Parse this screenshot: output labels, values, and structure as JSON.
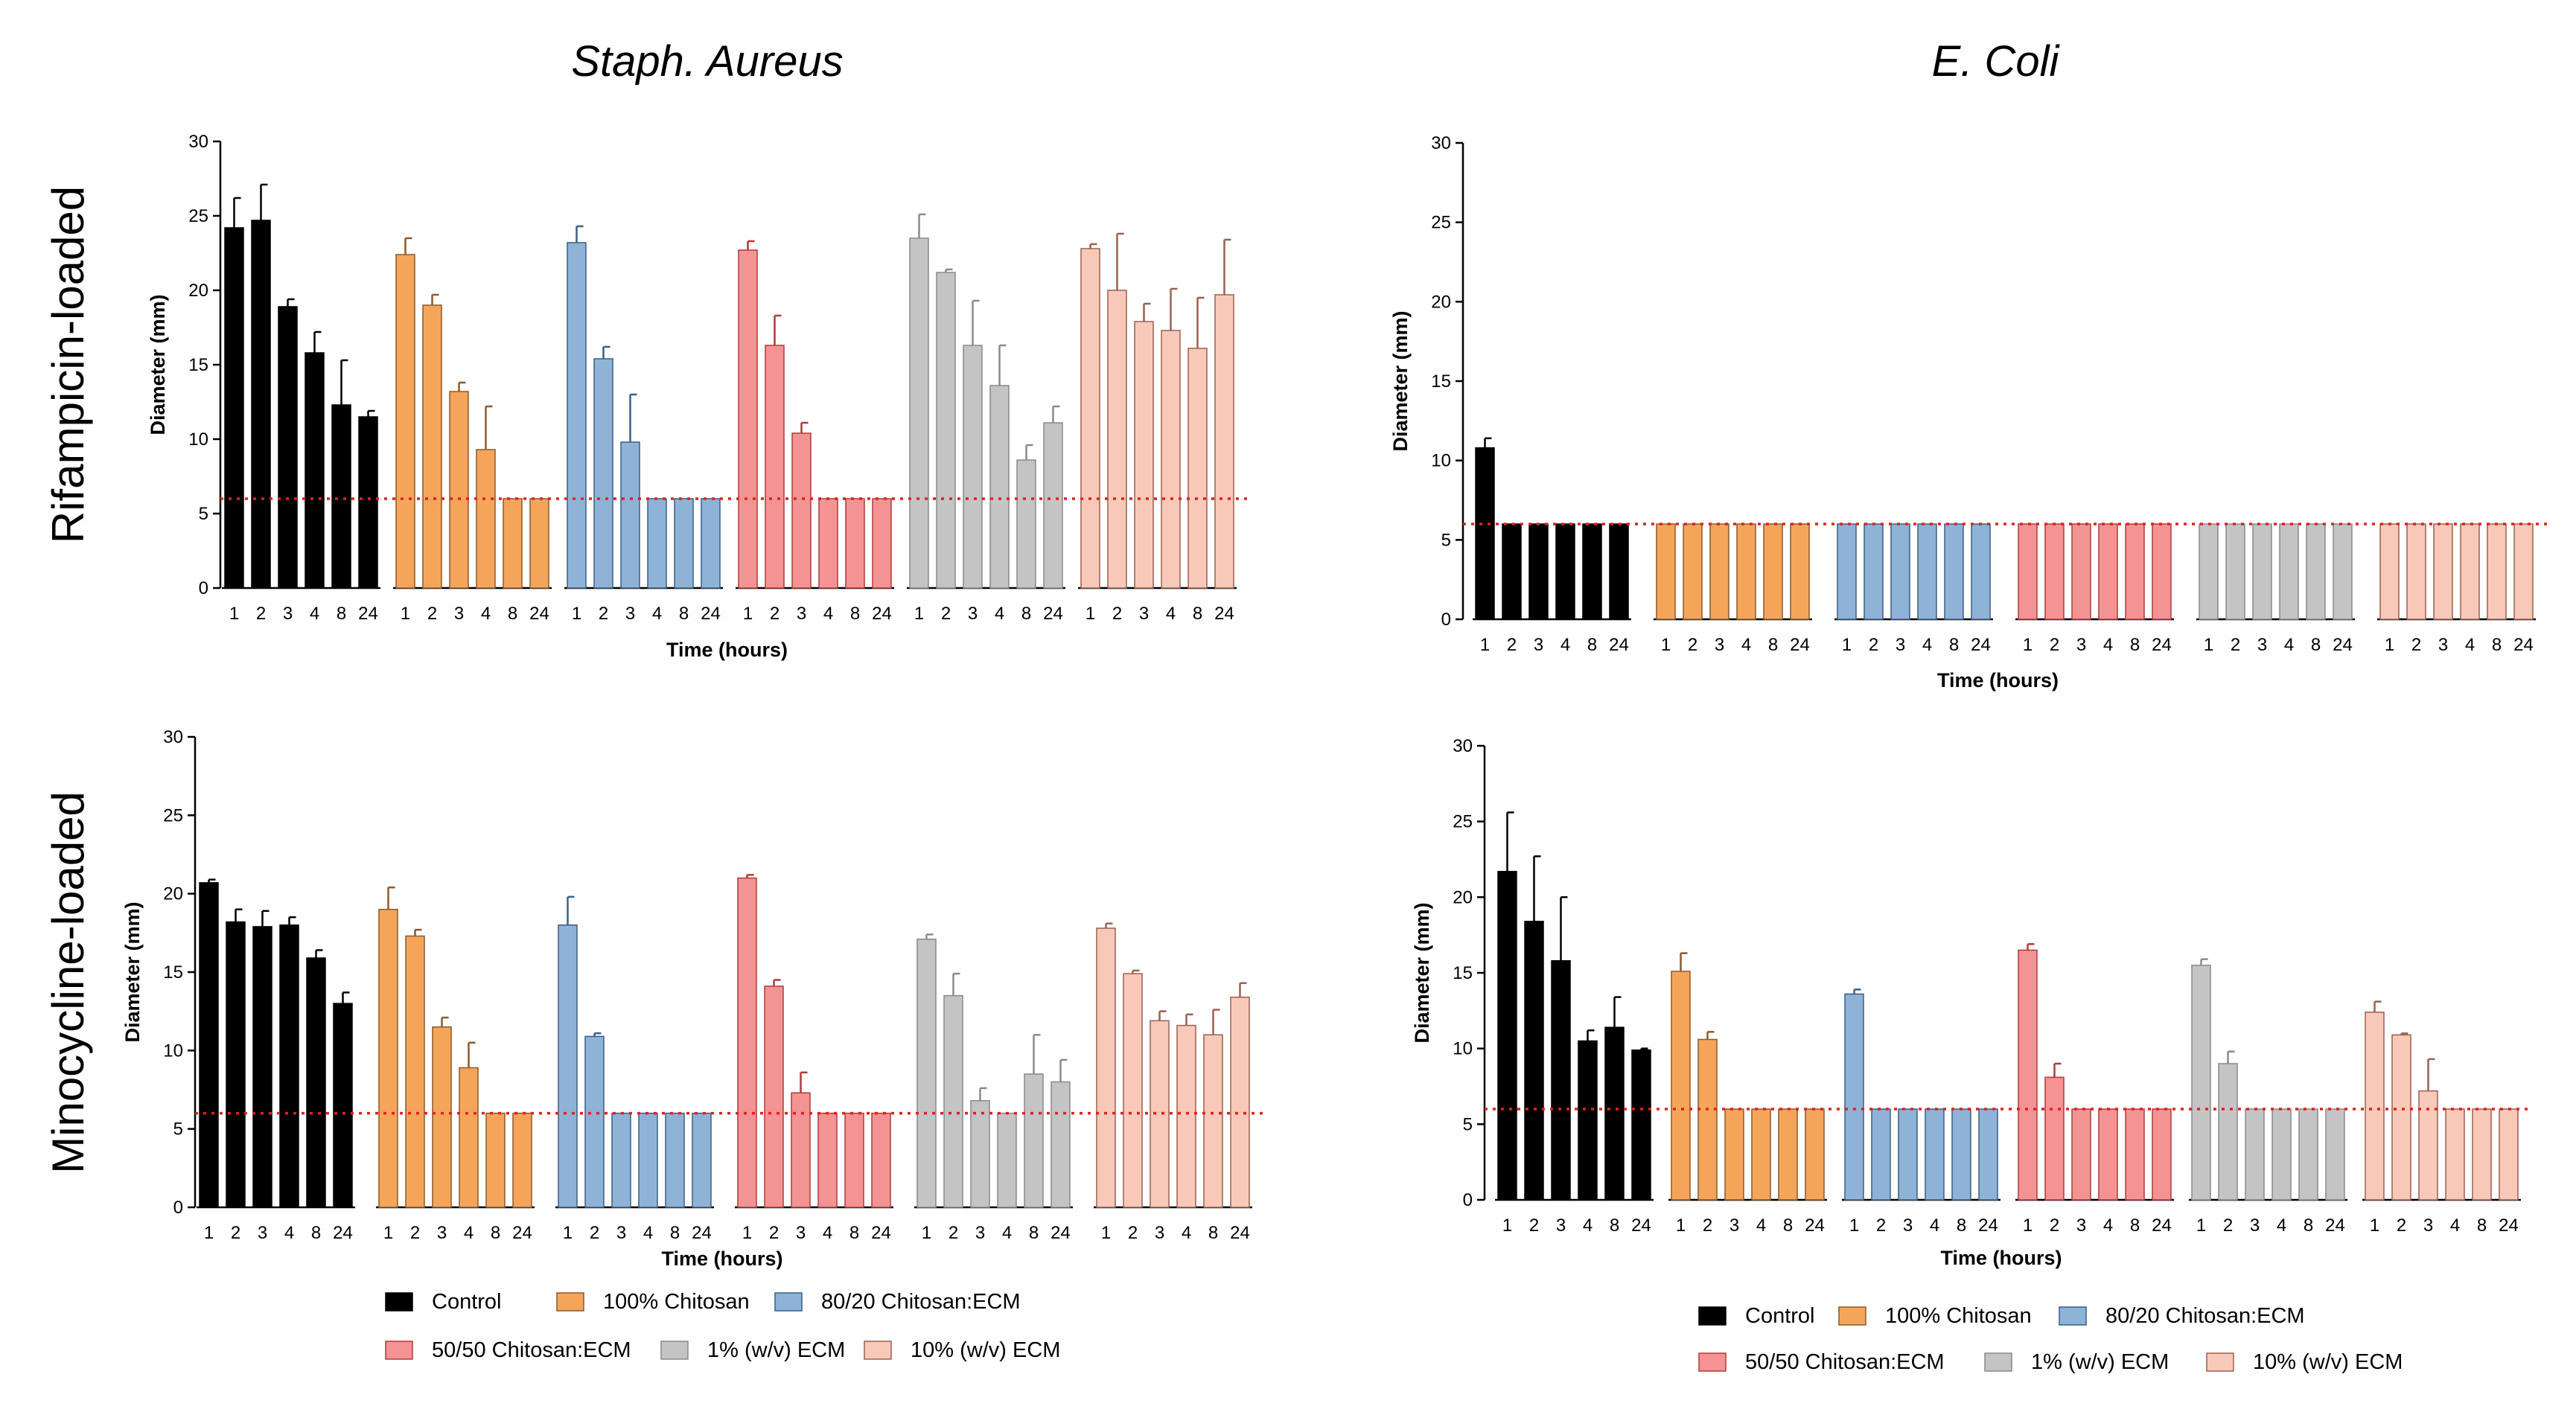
{
  "figure": {
    "column_titles": [
      "Staph. Aureus",
      "E. Coli"
    ],
    "row_titles": [
      "Rifampicin-loaded",
      "Minocycline-loaded"
    ]
  },
  "legend": {
    "items": [
      {
        "label": "Control",
        "color": "#000000"
      },
      {
        "label": "100% Chitosan",
        "color": "#F5A55A"
      },
      {
        "label": "80/20 Chitosan:ECM",
        "color": "#8FB3D6"
      },
      {
        "label": "50/50 Chitosan:ECM",
        "color": "#F49393"
      },
      {
        "label": "1% (w/v) ECM",
        "color": "#C4C4C4"
      },
      {
        "label": "10% (w/v) ECM",
        "color": "#F8C9B8"
      }
    ]
  },
  "chart_data": [
    {
      "type": "bar",
      "title": "Staph. Aureus",
      "row": "Rifampicin-loaded",
      "xlabel": "Time (hours)",
      "ylabel": "Diameter (mm)",
      "ylim": [
        0,
        30
      ],
      "yticks": [
        0,
        5,
        10,
        15,
        20,
        25,
        30
      ],
      "categories": [
        "1",
        "2",
        "3",
        "4",
        "8",
        "24"
      ],
      "reference_line": 6,
      "series": [
        {
          "name": "Control",
          "values": [
            24.2,
            24.7,
            18.9,
            15.8,
            12.3,
            11.5
          ],
          "errors": [
            2.0,
            2.4,
            0.5,
            1.4,
            3.0,
            0.4
          ]
        },
        {
          "name": "100% Chitosan",
          "values": [
            22.4,
            19.0,
            13.2,
            9.3,
            6,
            6
          ],
          "errors": [
            1.1,
            0.7,
            0.6,
            2.9,
            0,
            0
          ]
        },
        {
          "name": "80/20 Chitosan:ECM",
          "values": [
            23.2,
            15.4,
            9.8,
            6,
            6,
            6
          ],
          "errors": [
            1.1,
            0.8,
            3.2,
            0,
            0,
            0
          ]
        },
        {
          "name": "50/50 Chitosan:ECM",
          "values": [
            22.7,
            16.3,
            10.4,
            6,
            6,
            6
          ],
          "errors": [
            0.6,
            2.0,
            0.7,
            0,
            0,
            0
          ]
        },
        {
          "name": "1% (w/v) ECM",
          "values": [
            23.5,
            21.2,
            16.3,
            13.6,
            8.6,
            11.1
          ],
          "errors": [
            1.6,
            0.2,
            3.0,
            2.7,
            1.0,
            1.1
          ]
        },
        {
          "name": "10% (w/v) ECM",
          "values": [
            22.8,
            20.0,
            17.9,
            17.3,
            16.1,
            19.7
          ],
          "errors": [
            0.3,
            3.8,
            1.2,
            2.8,
            3.4,
            3.7
          ]
        }
      ]
    },
    {
      "type": "bar",
      "title": "E. Coli",
      "row": "Rifampicin-loaded",
      "xlabel": "Time (hours)",
      "ylabel": "Diameter (mm)",
      "ylim": [
        0,
        30
      ],
      "yticks": [
        0,
        5,
        10,
        15,
        20,
        25,
        30
      ],
      "categories": [
        "1",
        "2",
        "3",
        "4",
        "8",
        "24"
      ],
      "reference_line": 6,
      "series": [
        {
          "name": "Control",
          "values": [
            10.8,
            6,
            6,
            6,
            6,
            6
          ],
          "errors": [
            0.6,
            0,
            0,
            0,
            0,
            0
          ]
        },
        {
          "name": "100% Chitosan",
          "values": [
            6,
            6,
            6,
            6,
            6,
            6
          ],
          "errors": [
            0,
            0,
            0,
            0,
            0,
            0
          ]
        },
        {
          "name": "80/20 Chitosan:ECM",
          "values": [
            6,
            6,
            6,
            6,
            6,
            6
          ],
          "errors": [
            0,
            0,
            0,
            0,
            0,
            0
          ]
        },
        {
          "name": "50/50 Chitosan:ECM",
          "values": [
            6,
            6,
            6,
            6,
            6,
            6
          ],
          "errors": [
            0,
            0,
            0,
            0,
            0,
            0
          ]
        },
        {
          "name": "1% (w/v) ECM",
          "values": [
            6,
            6,
            6,
            6,
            6,
            6
          ],
          "errors": [
            0,
            0,
            0,
            0,
            0,
            0
          ]
        },
        {
          "name": "10% (w/v) ECM",
          "values": [
            6,
            6,
            6,
            6,
            6,
            6
          ],
          "errors": [
            0,
            0,
            0,
            0,
            0,
            0
          ]
        }
      ]
    },
    {
      "type": "bar",
      "title": "Staph. Aureus",
      "row": "Minocycline-loaded",
      "xlabel": "Time (hours)",
      "ylabel": "Diameter (mm)",
      "ylim": [
        0,
        30
      ],
      "yticks": [
        0,
        5,
        10,
        15,
        20,
        25,
        30
      ],
      "categories": [
        "1",
        "2",
        "3",
        "4",
        "8",
        "24"
      ],
      "reference_line": 6,
      "series": [
        {
          "name": "Control",
          "values": [
            20.7,
            18.2,
            17.9,
            18.0,
            15.9,
            13.0
          ],
          "errors": [
            0.2,
            0.8,
            1.0,
            0.5,
            0.5,
            0.7
          ]
        },
        {
          "name": "100% Chitosan",
          "values": [
            19.0,
            17.3,
            11.5,
            8.9,
            6,
            6
          ],
          "errors": [
            1.4,
            0.4,
            0.6,
            1.6,
            0,
            0
          ]
        },
        {
          "name": "80/20 Chitosan:ECM",
          "values": [
            18.0,
            10.9,
            6,
            6,
            6,
            6
          ],
          "errors": [
            1.8,
            0.2,
            0,
            0,
            0,
            0
          ]
        },
        {
          "name": "50/50 Chitosan:ECM",
          "values": [
            21.0,
            14.1,
            7.3,
            6,
            6,
            6
          ],
          "errors": [
            0.2,
            0.4,
            1.3,
            0,
            0,
            0
          ]
        },
        {
          "name": "1% (w/v) ECM",
          "values": [
            17.1,
            13.5,
            6.8,
            6,
            8.5,
            8.0
          ],
          "errors": [
            0.3,
            1.4,
            0.8,
            0,
            2.5,
            1.4
          ]
        },
        {
          "name": "10% (w/v) ECM",
          "values": [
            17.8,
            14.9,
            11.9,
            11.6,
            11.0,
            13.4
          ],
          "errors": [
            0.3,
            0.2,
            0.6,
            0.7,
            1.6,
            0.9
          ]
        }
      ]
    },
    {
      "type": "bar",
      "title": "E. Coli",
      "row": "Minocycline-loaded",
      "xlabel": "Time (hours)",
      "ylabel": "Diameter (mm)",
      "ylim": [
        0,
        30
      ],
      "yticks": [
        0,
        5,
        10,
        15,
        20,
        25,
        30
      ],
      "categories": [
        "1",
        "2",
        "3",
        "4",
        "8",
        "24"
      ],
      "reference_line": 6,
      "series": [
        {
          "name": "Control",
          "values": [
            21.7,
            18.4,
            15.8,
            10.5,
            11.4,
            9.9
          ],
          "errors": [
            3.9,
            4.3,
            4.2,
            0.7,
            2.0,
            0.1
          ]
        },
        {
          "name": "100% Chitosan",
          "values": [
            15.1,
            10.6,
            6,
            6,
            6,
            6
          ],
          "errors": [
            1.2,
            0.5,
            0,
            0,
            0,
            0
          ]
        },
        {
          "name": "80/20 Chitosan:ECM",
          "values": [
            13.6,
            6,
            6,
            6,
            6,
            6
          ],
          "errors": [
            0.3,
            0,
            0,
            0,
            0,
            0
          ]
        },
        {
          "name": "50/50 Chitosan:ECM",
          "values": [
            16.5,
            8.1,
            6,
            6,
            6,
            6
          ],
          "errors": [
            0.4,
            0.9,
            0,
            0,
            0,
            0
          ]
        },
        {
          "name": "1% (w/v) ECM",
          "values": [
            15.5,
            9.0,
            6,
            6,
            6,
            6
          ],
          "errors": [
            0.4,
            0.8,
            0,
            0,
            0,
            0
          ]
        },
        {
          "name": "10% (w/v) ECM",
          "values": [
            12.4,
            10.9,
            7.2,
            6,
            6,
            6
          ],
          "errors": [
            0.7,
            0.1,
            2.1,
            0,
            0,
            0
          ]
        }
      ]
    }
  ]
}
